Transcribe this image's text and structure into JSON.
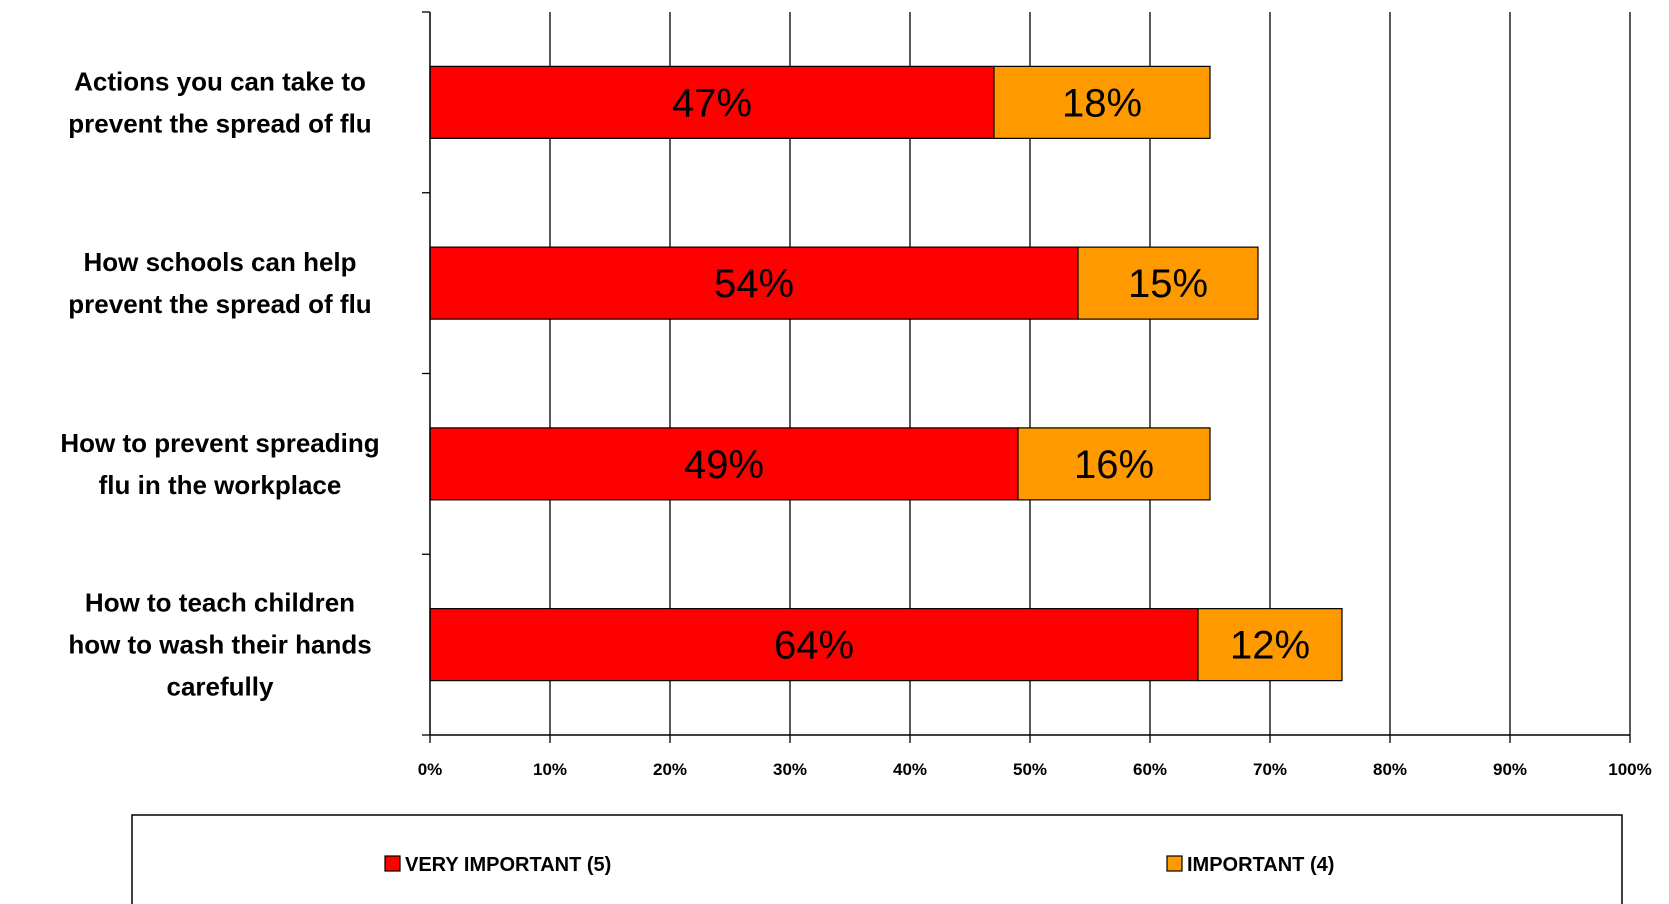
{
  "chart_data": {
    "type": "bar",
    "orientation": "horizontal",
    "stacked": true,
    "categories": [
      [
        "Actions you can take to",
        "prevent the spread of flu"
      ],
      [
        "How schools can help",
        "prevent the spread of flu"
      ],
      [
        "How to prevent spreading",
        "flu in the workplace"
      ],
      [
        "How to teach children",
        "how to wash their hands",
        "carefully"
      ]
    ],
    "series": [
      {
        "name": "VERY IMPORTANT (5)",
        "color": "#ff0000",
        "values": [
          47,
          54,
          49,
          64
        ],
        "labels": [
          "47%",
          "54%",
          "49%",
          "64%"
        ]
      },
      {
        "name": "IMPORTANT (4)",
        "color": "#ff9900",
        "values": [
          18,
          15,
          16,
          12
        ],
        "labels": [
          "18%",
          "15%",
          "16%",
          "12%"
        ]
      }
    ],
    "xlim": [
      0,
      100
    ],
    "xticks": [
      "0%",
      "10%",
      "20%",
      "30%",
      "40%",
      "50%",
      "60%",
      "70%",
      "80%",
      "90%",
      "100%"
    ],
    "grid": "vertical",
    "legend_position": "bottom"
  }
}
